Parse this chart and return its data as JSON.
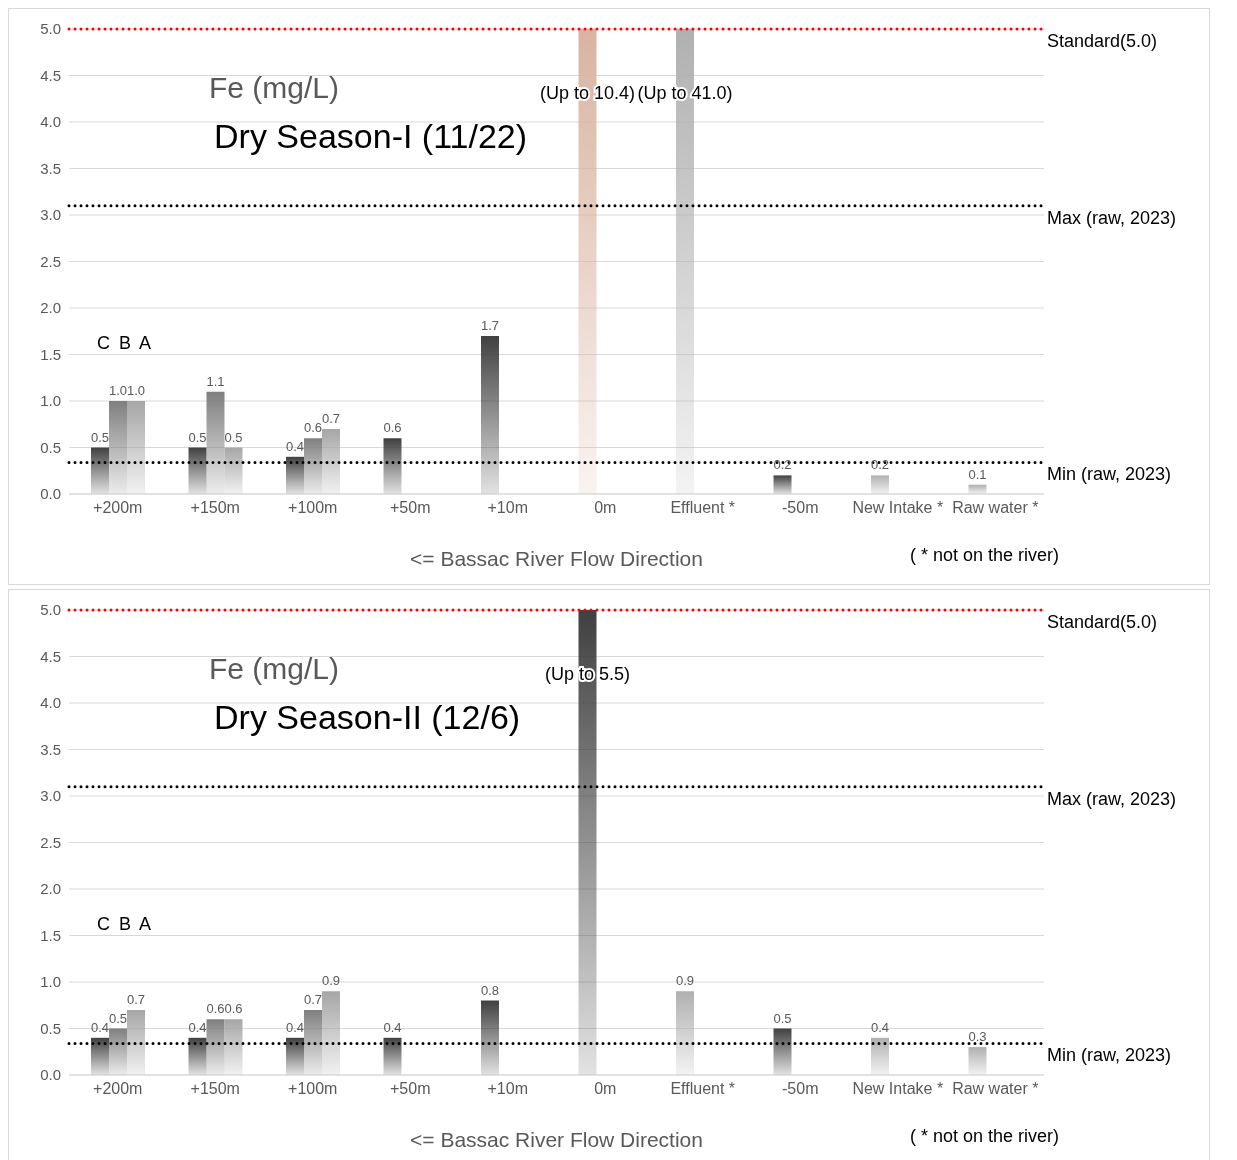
{
  "chart_data": [
    {
      "type": "bar",
      "title": "Fe (mg/L)",
      "subtitle": "Dry Season-I (11/22)",
      "xlabel": "<= Bassac River Flow Direction",
      "categories": [
        "+200m",
        "+150m",
        "+100m",
        "+50m",
        "+10m",
        "0m",
        "Effluent *",
        "-50m",
        "New Intake *",
        "Raw water *"
      ],
      "series": [
        {
          "type": "bar",
          "colors": [
            "#404040",
            "#404040",
            "#404040",
            "#404040",
            "#404040",
            "#d9b3a0",
            "#b0b0b0",
            "#404040",
            "#b0b0b0",
            "#b0b0b0"
          ],
          "values": [
            0.5,
            0.5,
            0.4,
            0.6,
            1.7,
            5.0,
            5.0,
            0.2,
            0.2,
            0.1
          ],
          "value_labels": [
            "0.5",
            "0.5",
            "0.4",
            "0.6",
            "1.7",
            "(Up to 10.4)",
            "(Up to 41.0)",
            "0.2",
            "0.2",
            "0.1"
          ]
        },
        {
          "type": "bar",
          "color": "#7f7f7f",
          "values": [
            1.0,
            1.1,
            0.6,
            null,
            null,
            null,
            null,
            null,
            null,
            null
          ],
          "value_labels": [
            "1.0",
            "1.1",
            "0.6",
            null,
            null,
            null,
            null,
            null,
            null,
            null
          ]
        },
        {
          "type": "bar",
          "color": "#a6a6a6",
          "values": [
            1.0,
            0.5,
            0.7,
            null,
            null,
            null,
            null,
            null,
            null,
            null
          ],
          "value_labels": [
            "1.0",
            "0.5",
            "0.7",
            null,
            null,
            null,
            null,
            null,
            null,
            null
          ]
        }
      ],
      "ylim": [
        0,
        5
      ],
      "yticks": [
        {
          "value": 0,
          "label": "0.0"
        },
        {
          "value": 0.5,
          "label": "0.5"
        },
        {
          "value": 1,
          "label": "1.0"
        },
        {
          "value": 1.5,
          "label": "1.5"
        },
        {
          "value": 2,
          "label": "2.0"
        },
        {
          "value": 2.5,
          "label": "2.5"
        },
        {
          "value": 3,
          "label": "3.0"
        },
        {
          "value": 3.5,
          "label": "3.5"
        },
        {
          "value": 4,
          "label": "4.0"
        },
        {
          "value": 4.5,
          "label": "4.5"
        },
        {
          "value": 5,
          "label": "5.0"
        }
      ],
      "grid": "y",
      "legend": false,
      "line_style": "dotted",
      "ref_lines": [
        {
          "axis": "y",
          "value": 5.0,
          "label": "Standard(5.0)",
          "color": "#ff0000"
        },
        {
          "axis": "y",
          "value": 3.1,
          "label": "Max (raw, 2023)",
          "color": "#000000"
        },
        {
          "axis": "y",
          "value": 0.34,
          "label": "Min (raw, 2023)",
          "color": "#000000"
        }
      ],
      "annotations": [
        "C B A",
        "( * not on the river)"
      ]
    },
    {
      "type": "bar",
      "title": "Fe (mg/L)",
      "subtitle": "Dry Season-II (12/6)",
      "xlabel": "<= Bassac River Flow Direction",
      "categories": [
        "+200m",
        "+150m",
        "+100m",
        "+50m",
        "+10m",
        "0m",
        "Effluent *",
        "-50m",
        "New Intake *",
        "Raw water *"
      ],
      "series": [
        {
          "type": "bar",
          "colors": [
            "#404040",
            "#404040",
            "#404040",
            "#404040",
            "#404040",
            "#404040",
            "#b0b0b0",
            "#404040",
            "#b0b0b0",
            "#b0b0b0"
          ],
          "values": [
            0.4,
            0.4,
            0.4,
            0.4,
            0.8,
            5.0,
            0.9,
            0.5,
            0.4,
            0.3
          ],
          "value_labels": [
            "0.4",
            "0.4",
            "0.4",
            "0.4",
            "0.8",
            "(Up to 5.5)",
            "0.9",
            "0.5",
            "0.4",
            "0.3"
          ]
        },
        {
          "type": "bar",
          "color": "#7f7f7f",
          "values": [
            0.5,
            0.6,
            0.7,
            null,
            null,
            null,
            null,
            null,
            null,
            null
          ],
          "value_labels": [
            "0.5",
            "0.6",
            "0.7",
            null,
            null,
            null,
            null,
            null,
            null,
            null
          ]
        },
        {
          "type": "bar",
          "color": "#a6a6a6",
          "values": [
            0.7,
            0.6,
            0.9,
            null,
            null,
            null,
            null,
            null,
            null,
            null
          ],
          "value_labels": [
            "0.7",
            "0.6",
            "0.9",
            null,
            null,
            null,
            null,
            null,
            null,
            null
          ]
        }
      ],
      "ylim": [
        0,
        5
      ],
      "yticks": [
        {
          "value": 0,
          "label": "0.0"
        },
        {
          "value": 0.5,
          "label": "0.5"
        },
        {
          "value": 1,
          "label": "1.0"
        },
        {
          "value": 1.5,
          "label": "1.5"
        },
        {
          "value": 2,
          "label": "2.0"
        },
        {
          "value": 2.5,
          "label": "2.5"
        },
        {
          "value": 3,
          "label": "3.0"
        },
        {
          "value": 3.5,
          "label": "3.5"
        },
        {
          "value": 4,
          "label": "4.0"
        },
        {
          "value": 4.5,
          "label": "4.5"
        },
        {
          "value": 5,
          "label": "5.0"
        }
      ],
      "grid": "y",
      "legend": false,
      "line_style": "dotted",
      "ref_lines": [
        {
          "axis": "y",
          "value": 5.0,
          "label": "Standard(5.0)",
          "color": "#ff0000"
        },
        {
          "axis": "y",
          "value": 3.1,
          "label": "Max (raw, 2023)",
          "color": "#000000"
        },
        {
          "axis": "y",
          "value": 0.34,
          "label": "Min (raw, 2023)",
          "color": "#000000"
        }
      ],
      "annotations": [
        "C B A",
        "( * not on the river)"
      ]
    }
  ]
}
